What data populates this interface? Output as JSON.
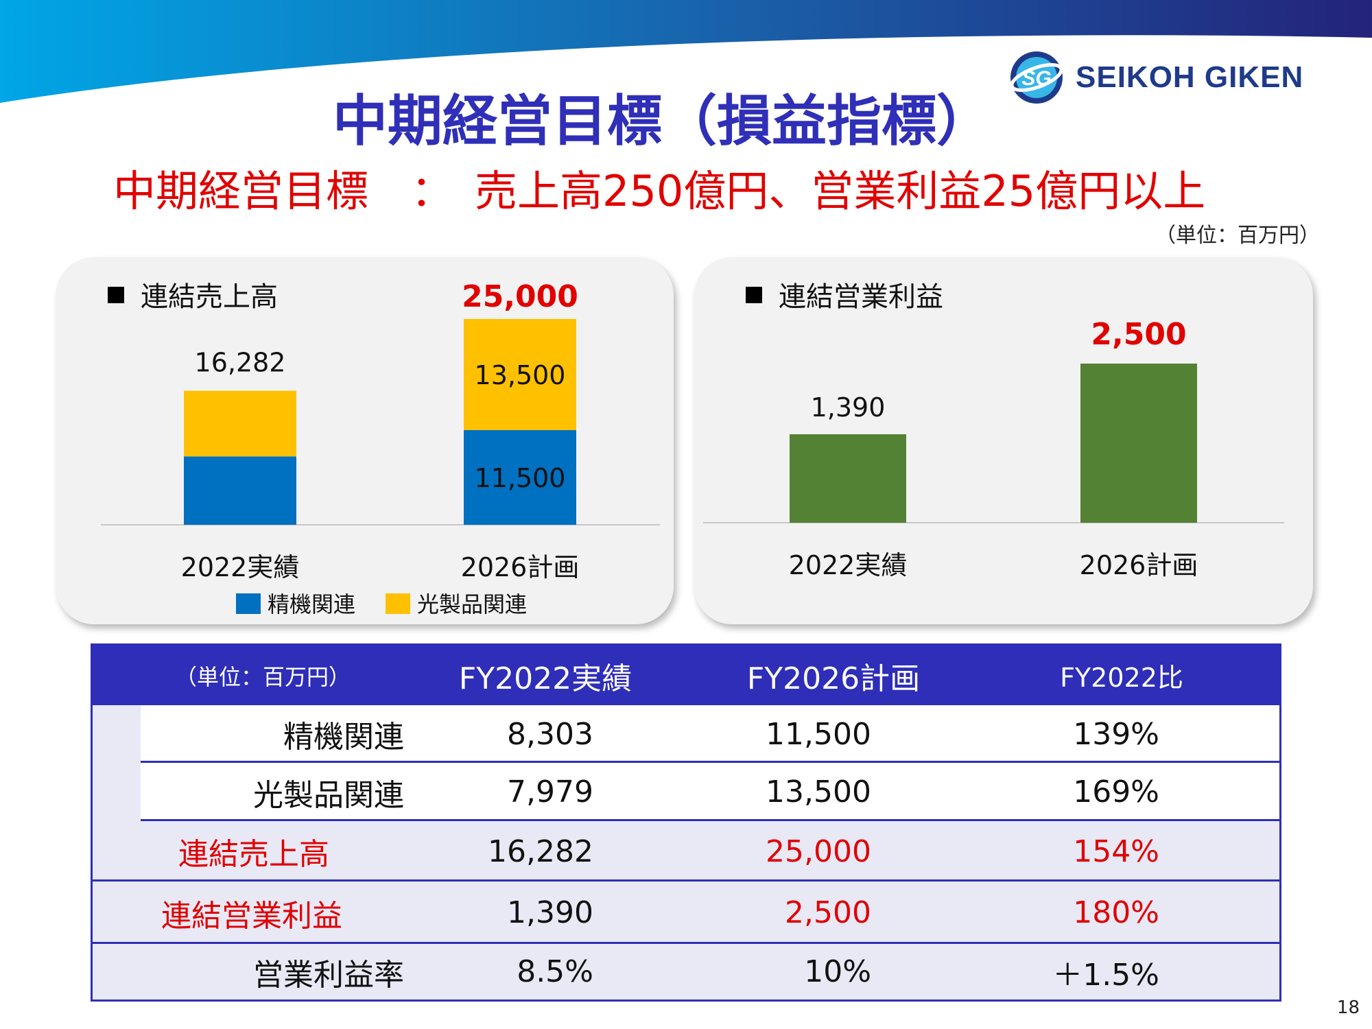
{
  "page": {
    "title": "中期経営目標（損益指標）",
    "subtitle": "中期経営目標　：　売上高250億円、営業利益25億円以上",
    "unit_label": "（単位：百万円）",
    "page_number": "18"
  },
  "logo": {
    "text": "SEIKOH GIKEN",
    "mark": "SG"
  },
  "colors": {
    "precision": "#0070c0",
    "optical": "#ffc000",
    "profit": "#548235",
    "accent_red": "#e00000",
    "header_blue": "#2e2eb8"
  },
  "chart_data": [
    {
      "type": "bar",
      "stacked": true,
      "title": "■ 連結売上高",
      "categories": [
        "2022実績",
        "2026計画"
      ],
      "series": [
        {
          "name": "精機関連",
          "values": [
            8303,
            11500
          ],
          "value_labels": [
            "",
            "11,500"
          ]
        },
        {
          "name": "光製品関連",
          "values": [
            7979,
            13500
          ],
          "value_labels": [
            "",
            "13,500"
          ]
        }
      ],
      "totals": [
        16282,
        25000
      ],
      "total_labels": [
        "16,282",
        "25,000"
      ],
      "legend": [
        "精機関連",
        "光製品関連"
      ],
      "legend_position": "bottom",
      "ylim": [
        0,
        25000
      ]
    },
    {
      "type": "bar",
      "title": "■ 連結営業利益",
      "categories": [
        "2022実績",
        "2026計画"
      ],
      "values": [
        1390,
        2500
      ],
      "value_labels": [
        "1,390",
        "2,500"
      ],
      "ylim": [
        0,
        2500
      ]
    }
  ],
  "table": {
    "header": [
      "（単位：百万円）",
      "FY2022実績",
      "FY2026計画",
      "FY2022比"
    ],
    "rows": [
      {
        "label": "精機関連",
        "values": [
          "8,303",
          "11,500",
          "139%"
        ]
      },
      {
        "label": "光製品関連",
        "values": [
          "7,979",
          "13,500",
          "169%"
        ]
      },
      {
        "label": "連結売上高",
        "values": [
          "16,282",
          "25,000",
          "154%"
        ]
      },
      {
        "label": "連結営業利益",
        "values": [
          "1,390",
          "2,500",
          "180%"
        ]
      },
      {
        "label": "営業利益率",
        "values": [
          "8.5%",
          "10%",
          "＋1.5%"
        ]
      }
    ]
  }
}
